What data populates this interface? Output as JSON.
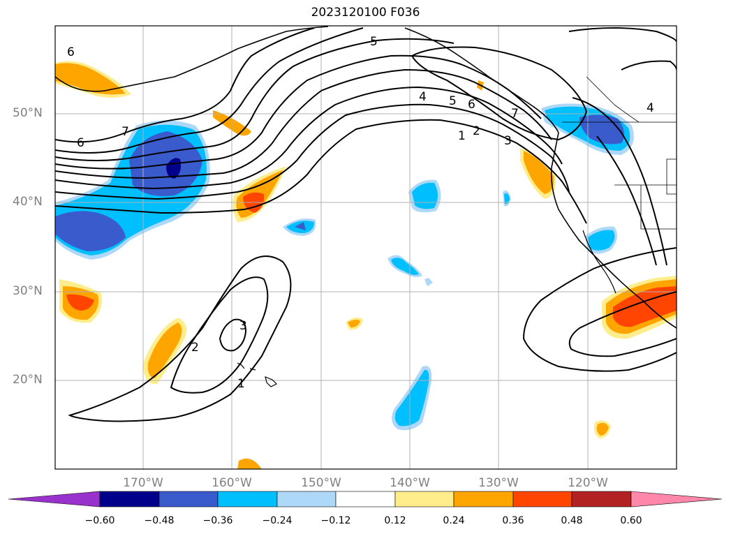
{
  "title": "2023120100 F036",
  "lat_labels": [
    "50°N",
    "40°N",
    "30°N",
    "20°N"
  ],
  "lon_labels": [
    "170°W",
    "160°W",
    "150°W",
    "140°W",
    "130°W",
    "120°W"
  ],
  "colorbar": {
    "ticks": [
      "−0.60",
      "−0.48",
      "−0.36",
      "−0.24",
      "−0.12",
      "0.12",
      "0.24",
      "0.36",
      "0.48",
      "0.60"
    ],
    "colors": [
      "#9932cc",
      "#00008b",
      "#3a5bcc",
      "#00bfff",
      "#add8f7",
      "#ffffff",
      "#ffec8b",
      "#ffa500",
      "#ff4500",
      "#b22222",
      "#ff88aa"
    ]
  },
  "contour_labels": {
    "l6a": "6",
    "l5a": "5",
    "l7a": "7",
    "l6b": "6",
    "l4a": "4",
    "l5b": "5",
    "l6c": "6",
    "l7b": "7",
    "l1a": "1",
    "l2a": "2",
    "l3a": "3",
    "l4b": "4",
    "l3b": "3",
    "l2b": "2",
    "l1b": "1"
  }
}
